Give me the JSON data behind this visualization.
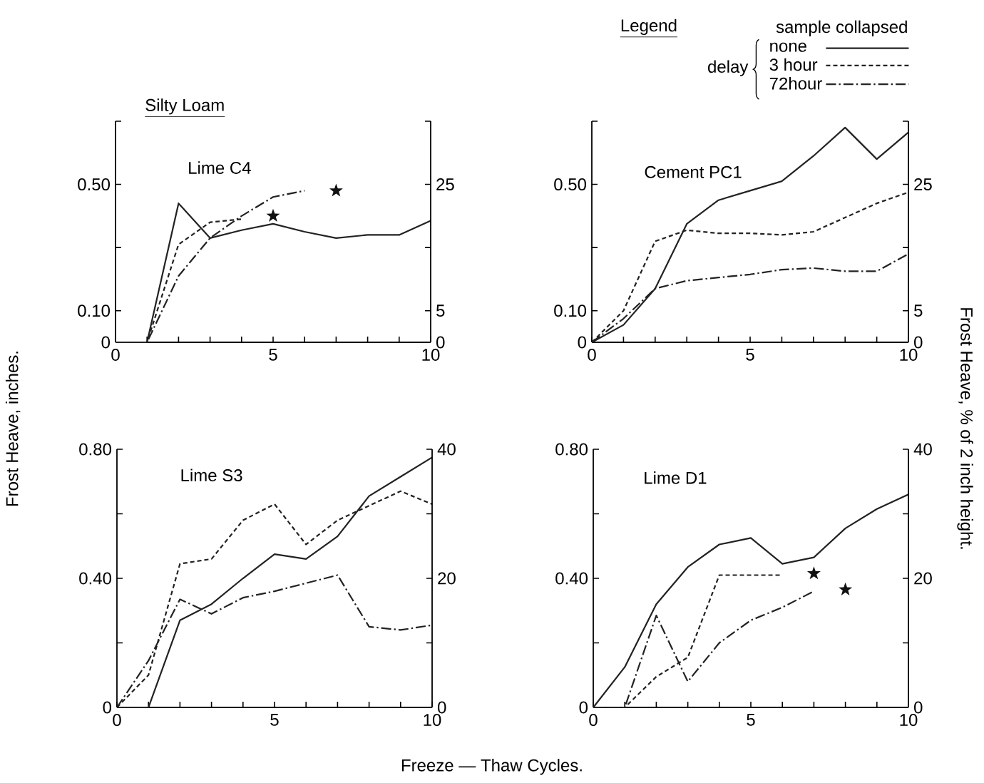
{
  "chart_data": [
    {
      "type": "line",
      "title": "Silty Loam",
      "subtitle": "Lime C4",
      "x": [
        0,
        1,
        2,
        3,
        4,
        5,
        6,
        7,
        8,
        9,
        10
      ],
      "xlim": [
        0,
        10
      ],
      "xticks": [
        0,
        {
          "value": 1,
          "label": null
        },
        {
          "value": 2,
          "label": null
        },
        {
          "value": 3,
          "label": null
        },
        {
          "value": 4,
          "label": null
        },
        5,
        {
          "value": 6,
          "label": null
        },
        {
          "value": 7,
          "label": null
        },
        {
          "value": 8,
          "label": null
        },
        {
          "value": 9,
          "label": null
        },
        10
      ],
      "ylim": [
        0,
        0.7
      ],
      "yticks": [
        0,
        {
          "value": 0.1,
          "label": "0.10"
        },
        {
          "value": 0.3,
          "label": null
        },
        {
          "value": 0.5,
          "label": "0.50"
        },
        {
          "value": 0.7,
          "label": null
        }
      ],
      "y2lim": [
        0,
        35
      ],
      "y2ticks": [
        0,
        5,
        {
          "value": 15,
          "label": null
        },
        25,
        {
          "value": 35,
          "label": null
        }
      ],
      "series": [
        {
          "color": "#222222",
          "line_style": "solid",
          "values": [
            0,
            0,
            0.44,
            0.33,
            0.355,
            0.375,
            0.35,
            0.33,
            0.34,
            0.34,
            0.385
          ]
        },
        {
          "color": "#222222",
          "line_style": "dashed",
          "values": [
            0,
            0,
            0.31,
            0.38,
            0.39,
            null,
            null,
            null,
            null,
            null,
            null
          ]
        },
        {
          "color": "#222222",
          "line_style": "dashdot",
          "values": [
            0,
            0,
            0.21,
            0.33,
            0.4,
            0.46,
            0.48,
            null,
            null,
            null,
            null
          ]
        },
        {
          "type": "scatter",
          "marker": "star",
          "color": "#111111",
          "x": [
            5,
            7
          ],
          "values": [
            0.4,
            0.48
          ]
        }
      ]
    },
    {
      "type": "line",
      "subtitle": "Cement PC1",
      "x": [
        0,
        1,
        2,
        3,
        4,
        5,
        6,
        7,
        8,
        9,
        10
      ],
      "xlim": [
        0,
        10
      ],
      "xticks": [
        0,
        {
          "value": 1,
          "label": null
        },
        {
          "value": 2,
          "label": null
        },
        {
          "value": 3,
          "label": null
        },
        {
          "value": 4,
          "label": null
        },
        5,
        {
          "value": 6,
          "label": null
        },
        {
          "value": 7,
          "label": null
        },
        {
          "value": 8,
          "label": null
        },
        {
          "value": 9,
          "label": null
        },
        10
      ],
      "ylim": [
        0,
        0.7
      ],
      "yticks": [
        0,
        {
          "value": 0.1,
          "label": "0.10"
        },
        {
          "value": 0.3,
          "label": null
        },
        {
          "value": 0.5,
          "label": "0.50"
        },
        {
          "value": 0.7,
          "label": null
        }
      ],
      "y2lim": [
        0,
        35
      ],
      "y2ticks": [
        0,
        5,
        {
          "value": 15,
          "label": null
        },
        25,
        {
          "value": 35,
          "label": null
        }
      ],
      "legend": "top right",
      "legend_title": "Legend",
      "annotations": [
        "sample collapsed",
        "delay"
      ],
      "series": [
        {
          "name": "none",
          "color": "#222222",
          "line_style": "solid",
          "values": [
            0,
            0.055,
            0.17,
            0.375,
            0.45,
            0.48,
            0.51,
            0.59,
            0.68,
            0.58,
            0.665
          ]
        },
        {
          "name": "3 hour",
          "color": "#222222",
          "line_style": "dashed",
          "values": [
            0,
            0.1,
            0.32,
            0.355,
            0.345,
            0.345,
            0.34,
            0.35,
            0.395,
            0.44,
            0.475
          ]
        },
        {
          "name": "72hour",
          "color": "#222222",
          "line_style": "dashdot",
          "values": [
            0,
            0.075,
            0.17,
            0.195,
            0.205,
            0.215,
            0.23,
            0.235,
            0.225,
            0.225,
            0.28
          ]
        }
      ]
    },
    {
      "type": "line",
      "subtitle": "Lime S3",
      "xlabel": "Freeze — Thaw Cycles.",
      "ylabel": "Frost Heave, inches.",
      "x": [
        0,
        1,
        2,
        3,
        4,
        5,
        6,
        7,
        8,
        9,
        10
      ],
      "xlim": [
        0,
        10
      ],
      "xticks": [
        0,
        {
          "value": 1,
          "label": null
        },
        {
          "value": 2,
          "label": null
        },
        {
          "value": 3,
          "label": null
        },
        {
          "value": 4,
          "label": null
        },
        5,
        {
          "value": 6,
          "label": null
        },
        {
          "value": 7,
          "label": null
        },
        {
          "value": 8,
          "label": null
        },
        {
          "value": 9,
          "label": null
        },
        10
      ],
      "ylim": [
        0,
        0.8
      ],
      "yticks": [
        0,
        {
          "value": 0.2,
          "label": null
        },
        {
          "value": 0.4,
          "label": "0.40"
        },
        {
          "value": 0.6,
          "label": null
        },
        {
          "value": 0.8,
          "label": "0.80"
        }
      ],
      "y2lim": [
        0,
        40
      ],
      "y2ticks": [
        0,
        {
          "value": 10,
          "label": null
        },
        20,
        {
          "value": 30,
          "label": null
        },
        40
      ],
      "series": [
        {
          "color": "#222222",
          "line_style": "solid",
          "values": [
            0,
            0,
            0.27,
            0.32,
            0.4,
            0.475,
            0.46,
            0.53,
            0.655,
            0.715,
            0.775
          ]
        },
        {
          "color": "#222222",
          "line_style": "dashed",
          "values": [
            0,
            0.1,
            0.445,
            0.46,
            0.58,
            0.63,
            0.505,
            0.58,
            0.625,
            0.67,
            0.63
          ]
        },
        {
          "color": "#222222",
          "line_style": "dashdot",
          "values": [
            0,
            0.145,
            0.335,
            0.29,
            0.34,
            0.36,
            0.385,
            0.41,
            0.25,
            0.24,
            0.255
          ]
        }
      ]
    },
    {
      "type": "line",
      "subtitle": "Lime D1",
      "y2label": "Frost Heave, % of 2 inch height.",
      "x": [
        0,
        1,
        2,
        3,
        4,
        5,
        6,
        7,
        8,
        9,
        10
      ],
      "xlim": [
        0,
        10
      ],
      "xticks": [
        0,
        {
          "value": 1,
          "label": null
        },
        {
          "value": 2,
          "label": null
        },
        {
          "value": 3,
          "label": null
        },
        {
          "value": 4,
          "label": null
        },
        5,
        {
          "value": 6,
          "label": null
        },
        {
          "value": 7,
          "label": null
        },
        {
          "value": 8,
          "label": null
        },
        {
          "value": 9,
          "label": null
        },
        10
      ],
      "ylim": [
        0,
        0.8
      ],
      "yticks": [
        0,
        {
          "value": 0.2,
          "label": null
        },
        {
          "value": 0.4,
          "label": "0.40"
        },
        {
          "value": 0.6,
          "label": null
        },
        {
          "value": 0.8,
          "label": "0.80"
        }
      ],
      "y2lim": [
        0,
        40
      ],
      "y2ticks": [
        0,
        {
          "value": 10,
          "label": null
        },
        20,
        {
          "value": 30,
          "label": null
        },
        40
      ],
      "series": [
        {
          "color": "#222222",
          "line_style": "solid",
          "values": [
            0,
            0.125,
            0.32,
            0.435,
            0.505,
            0.525,
            0.445,
            0.465,
            0.555,
            0.615,
            0.66
          ]
        },
        {
          "color": "#222222",
          "line_style": "dashed",
          "values": [
            0,
            0,
            0.095,
            0.155,
            0.41,
            0.41,
            0.41,
            null,
            null,
            null,
            null
          ]
        },
        {
          "color": "#222222",
          "line_style": "dashdot",
          "values": [
            0,
            0,
            0.285,
            0.08,
            0.2,
            0.27,
            0.31,
            0.36,
            null,
            null,
            null
          ]
        },
        {
          "type": "scatter",
          "marker": "star",
          "color": "#111111",
          "x": [
            7,
            8
          ],
          "values": [
            0.415,
            0.365
          ]
        }
      ]
    }
  ]
}
